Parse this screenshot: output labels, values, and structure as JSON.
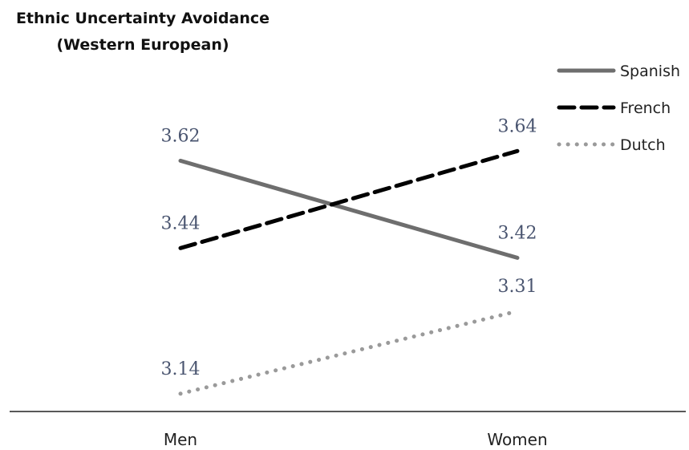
{
  "chart_data": {
    "type": "line",
    "title": "Ethnic Uncertainty Avoidance",
    "subtitle": "(Western European)",
    "xlabel": "",
    "ylabel": "",
    "categories": [
      "Men",
      "Women"
    ],
    "ylim": [
      3.1,
      3.7
    ],
    "grid": false,
    "legend_position": "top-right",
    "label_color": "#4a5570",
    "series": [
      {
        "name": "Spanish",
        "values": [
          3.62,
          3.42
        ],
        "labels": [
          "3.62",
          "3.42"
        ],
        "color": "#6e6e6e",
        "style": "solid"
      },
      {
        "name": "French",
        "values": [
          3.44,
          3.64
        ],
        "labels": [
          "3.44",
          "3.64"
        ],
        "color": "#000000",
        "style": "dashed"
      },
      {
        "name": "Dutch",
        "values": [
          3.14,
          3.31
        ],
        "labels": [
          "3.14",
          "3.31"
        ],
        "color": "#9a9a9a",
        "style": "dotted"
      }
    ]
  }
}
